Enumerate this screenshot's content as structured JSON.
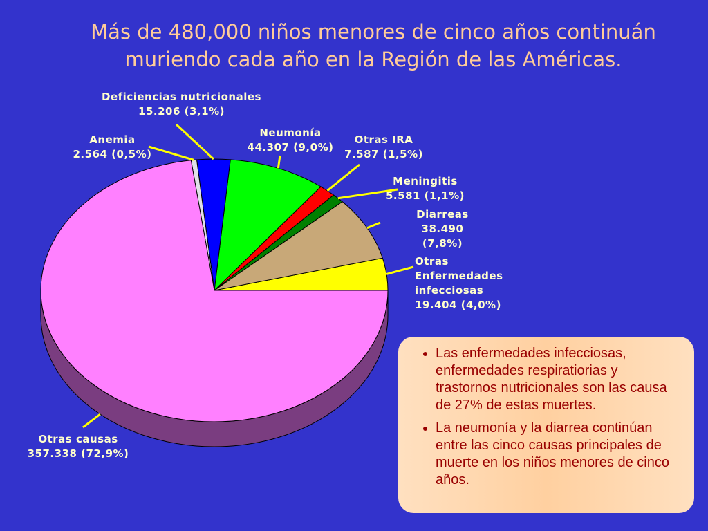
{
  "chart_data": {
    "type": "pie",
    "title": "Más de 480,000 niños menores de cinco años continuán muriendo cada año en la Región de las Américas.",
    "categories": [
      "Otras Enfermedades infecciosas",
      "Diarreas",
      "Meningitis",
      "Otras IRA",
      "Neumonía",
      "Deficiencias nutricionales",
      "Anemia",
      "Otras causas"
    ],
    "values": [
      19404,
      38490,
      5581,
      7587,
      44307,
      15206,
      2564,
      357338
    ],
    "value_labels": [
      "19.404 (4,0%)",
      "38.490 (7,8%)",
      "5.581 (1,1%)",
      "7.587 (1,5%)",
      "44.307 (9,0%)",
      "15.206 (3,1%)",
      "2.564 (0,5%)",
      "357.338 (72,9%)"
    ],
    "colors": [
      "#ffff00",
      "#c8a878",
      "#008000",
      "#ff0000",
      "#00ff00",
      "#0000ff",
      "#e0e0e8",
      "#ff80ff"
    ]
  },
  "notes": [
    "Las enfermedades infecciosas, enfermedades respiratiorias y trastornos nutricionales son las causa de 27% de estas muertes.",
    "La neumonía y la diarrea continúan entre las cinco causas principales de muerte en los niños menores de cinco años."
  ]
}
